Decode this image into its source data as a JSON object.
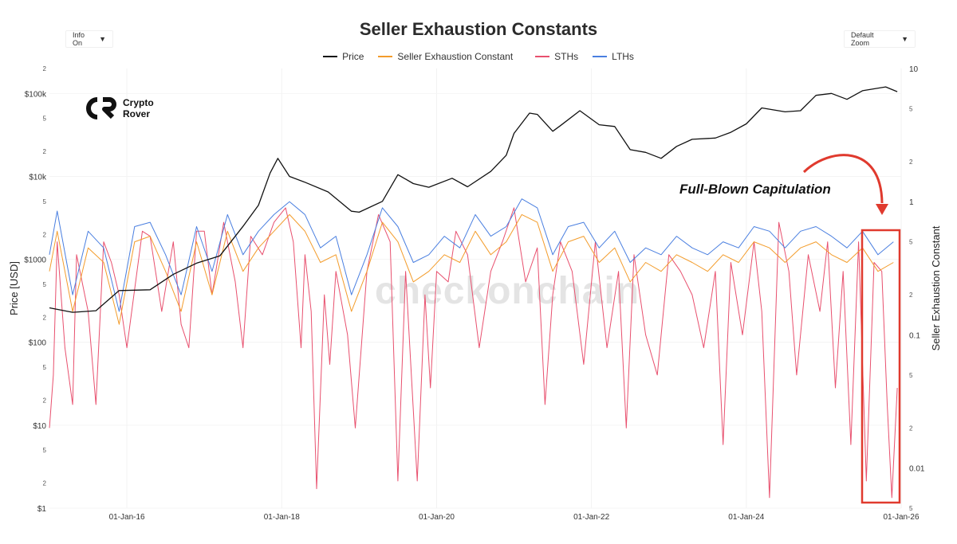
{
  "controls": {
    "info_label": "Info On",
    "zoom_label": "Default Zoom",
    "caret": "▼"
  },
  "logo": {
    "line1": "Crypto",
    "line2": "Rover"
  },
  "watermark": "checkonchain",
  "annotation": "Full-Blown Capitulation",
  "colors": {
    "price": "#111111",
    "sec": "#f39c2b",
    "sths": "#e8506e",
    "lths": "#4a7fe0",
    "highlight": "#e03a2e"
  },
  "chart_data": {
    "type": "line",
    "title": "Seller Exhaustion Constants",
    "legend": [
      "Price",
      "Seller Exhaustion Constant",
      "STHs",
      "LTHs"
    ],
    "x_ticks": [
      "01-Jan-16",
      "01-Jan-18",
      "01-Jan-20",
      "01-Jan-22",
      "01-Jan-24",
      "01-Jan-26"
    ],
    "x_range": [
      2015.0,
      2026.0
    ],
    "y_left": {
      "label": "Price [USD]",
      "scale": "log",
      "range": [
        1,
        200000
      ],
      "major_ticks": [
        {
          "value": 1,
          "label": "$1"
        },
        {
          "value": 10,
          "label": "$10"
        },
        {
          "value": 100,
          "label": "$100"
        },
        {
          "value": 1000,
          "label": "$1000"
        },
        {
          "value": 10000,
          "label": "$10k"
        },
        {
          "value": 100000,
          "label": "$100k"
        }
      ],
      "minor_ticks": [
        {
          "value": 2,
          "label": "2"
        },
        {
          "value": 5,
          "label": "5"
        },
        {
          "value": 20,
          "label": "2"
        },
        {
          "value": 50,
          "label": "5"
        },
        {
          "value": 200,
          "label": "2"
        },
        {
          "value": 500,
          "label": "5"
        },
        {
          "value": 2000,
          "label": "2"
        },
        {
          "value": 5000,
          "label": "5"
        },
        {
          "value": 20000,
          "label": "2"
        },
        {
          "value": 50000,
          "label": "5"
        },
        {
          "value": 200000,
          "label": "2"
        }
      ]
    },
    "y_right": {
      "label": "Seller Exhaustion Constant",
      "scale": "log",
      "range": [
        0.005,
        10
      ],
      "major_ticks": [
        {
          "value": 0.01,
          "label": "0.01"
        },
        {
          "value": 0.1,
          "label": "0.1"
        },
        {
          "value": 1,
          "label": "1"
        },
        {
          "value": 10,
          "label": "10"
        }
      ],
      "minor_ticks": [
        {
          "value": 0.005,
          "label": "5"
        },
        {
          "value": 0.02,
          "label": "2"
        },
        {
          "value": 0.05,
          "label": "5"
        },
        {
          "value": 0.2,
          "label": "2"
        },
        {
          "value": 0.5,
          "label": "5"
        },
        {
          "value": 2,
          "label": "2"
        },
        {
          "value": 5,
          "label": "5"
        }
      ]
    },
    "series": [
      {
        "name": "Price",
        "axis": "left",
        "x": [
          2015.0,
          2015.3,
          2015.6,
          2015.9,
          2016.3,
          2016.6,
          2016.9,
          2017.2,
          2017.5,
          2017.7,
          2017.85,
          2017.95,
          2018.1,
          2018.3,
          2018.6,
          2018.9,
          2019.0,
          2019.3,
          2019.5,
          2019.7,
          2019.9,
          2020.2,
          2020.4,
          2020.7,
          2020.9,
          2021.0,
          2021.2,
          2021.3,
          2021.5,
          2021.6,
          2021.85,
          2022.1,
          2022.3,
          2022.5,
          2022.7,
          2022.9,
          2023.1,
          2023.3,
          2023.6,
          2023.8,
          2024.0,
          2024.2,
          2024.5,
          2024.7,
          2024.9,
          2025.1,
          2025.3,
          2025.5,
          2025.8,
          2025.95
        ],
        "values": [
          260,
          230,
          240,
          420,
          430,
          660,
          900,
          1100,
          2500,
          4500,
          11000,
          16500,
          10000,
          8500,
          6500,
          3800,
          3700,
          5000,
          10500,
          8200,
          7400,
          9500,
          7500,
          11500,
          18000,
          33000,
          58000,
          56000,
          35000,
          41000,
          62000,
          42000,
          40000,
          21000,
          19500,
          16500,
          23000,
          28000,
          29000,
          34000,
          43000,
          67000,
          60000,
          62000,
          95000,
          100000,
          85000,
          108000,
          120000,
          105000
        ]
      },
      {
        "name": "Seller Exhaustion Constant",
        "axis": "right",
        "x": [
          2015.0,
          2015.1,
          2015.3,
          2015.5,
          2015.7,
          2015.9,
          2016.1,
          2016.3,
          2016.5,
          2016.7,
          2016.9,
          2017.1,
          2017.3,
          2017.5,
          2017.7,
          2017.9,
          2018.1,
          2018.3,
          2018.5,
          2018.7,
          2018.9,
          2019.1,
          2019.3,
          2019.5,
          2019.7,
          2019.9,
          2020.1,
          2020.3,
          2020.5,
          2020.7,
          2020.9,
          2021.1,
          2021.3,
          2021.5,
          2021.7,
          2021.9,
          2022.1,
          2022.3,
          2022.5,
          2022.7,
          2022.9,
          2023.1,
          2023.3,
          2023.5,
          2023.7,
          2023.9,
          2024.1,
          2024.3,
          2024.5,
          2024.7,
          2024.9,
          2025.1,
          2025.3,
          2025.5,
          2025.7,
          2025.9
        ],
        "values": [
          0.3,
          0.6,
          0.15,
          0.45,
          0.35,
          0.12,
          0.5,
          0.55,
          0.3,
          0.15,
          0.5,
          0.2,
          0.6,
          0.3,
          0.45,
          0.6,
          0.8,
          0.6,
          0.35,
          0.4,
          0.15,
          0.3,
          0.7,
          0.5,
          0.25,
          0.3,
          0.4,
          0.35,
          0.6,
          0.4,
          0.5,
          0.8,
          0.7,
          0.3,
          0.5,
          0.55,
          0.35,
          0.45,
          0.25,
          0.35,
          0.3,
          0.4,
          0.35,
          0.3,
          0.4,
          0.35,
          0.5,
          0.45,
          0.35,
          0.45,
          0.5,
          0.4,
          0.35,
          0.45,
          0.3,
          0.35
        ]
      },
      {
        "name": "STHs",
        "axis": "right",
        "x": [
          2015.0,
          2015.05,
          2015.1,
          2015.2,
          2015.3,
          2015.35,
          2015.5,
          2015.6,
          2015.7,
          2015.8,
          2015.9,
          2016.0,
          2016.2,
          2016.3,
          2016.45,
          2016.6,
          2016.7,
          2016.8,
          2016.9,
          2017.0,
          2017.1,
          2017.25,
          2017.4,
          2017.5,
          2017.6,
          2017.75,
          2017.9,
          2018.05,
          2018.15,
          2018.25,
          2018.3,
          2018.38,
          2018.45,
          2018.55,
          2018.62,
          2018.7,
          2018.85,
          2018.95,
          2019.1,
          2019.25,
          2019.4,
          2019.5,
          2019.6,
          2019.75,
          2019.85,
          2019.92,
          2020.0,
          2020.15,
          2020.25,
          2020.4,
          2020.55,
          2020.7,
          2020.85,
          2021.0,
          2021.15,
          2021.3,
          2021.4,
          2021.5,
          2021.6,
          2021.75,
          2021.9,
          2022.05,
          2022.2,
          2022.35,
          2022.45,
          2022.55,
          2022.7,
          2022.85,
          2023.0,
          2023.15,
          2023.3,
          2023.45,
          2023.6,
          2023.7,
          2023.8,
          2023.95,
          2024.1,
          2024.2,
          2024.3,
          2024.42,
          2024.55,
          2024.65,
          2024.8,
          2024.95,
          2025.05,
          2025.15,
          2025.25,
          2025.35,
          2025.45,
          2025.55,
          2025.65,
          2025.75,
          2025.82,
          2025.88,
          2025.95
        ],
        "values": [
          0.02,
          0.05,
          0.5,
          0.08,
          0.03,
          0.4,
          0.15,
          0.03,
          0.5,
          0.35,
          0.2,
          0.08,
          0.6,
          0.55,
          0.15,
          0.5,
          0.12,
          0.08,
          0.6,
          0.6,
          0.2,
          0.7,
          0.25,
          0.08,
          0.55,
          0.4,
          0.7,
          0.9,
          0.5,
          0.08,
          0.4,
          0.15,
          0.007,
          0.2,
          0.06,
          0.3,
          0.1,
          0.02,
          0.3,
          0.8,
          0.5,
          0.008,
          0.3,
          0.008,
          0.2,
          0.04,
          0.3,
          0.25,
          0.6,
          0.4,
          0.08,
          0.3,
          0.5,
          0.9,
          0.25,
          0.45,
          0.03,
          0.2,
          0.5,
          0.3,
          0.06,
          0.5,
          0.08,
          0.3,
          0.02,
          0.4,
          0.1,
          0.05,
          0.4,
          0.3,
          0.2,
          0.08,
          0.3,
          0.015,
          0.35,
          0.1,
          0.5,
          0.15,
          0.006,
          0.7,
          0.3,
          0.05,
          0.4,
          0.15,
          0.5,
          0.04,
          0.3,
          0.015,
          0.5,
          0.008,
          0.35,
          0.3,
          0.03,
          0.006,
          0.04
        ]
      },
      {
        "name": "LTHs",
        "axis": "right",
        "x": [
          2015.0,
          2015.1,
          2015.3,
          2015.5,
          2015.7,
          2015.9,
          2016.1,
          2016.3,
          2016.5,
          2016.7,
          2016.9,
          2017.1,
          2017.3,
          2017.5,
          2017.7,
          2017.9,
          2018.1,
          2018.3,
          2018.5,
          2018.7,
          2018.9,
          2019.1,
          2019.3,
          2019.5,
          2019.7,
          2019.9,
          2020.1,
          2020.3,
          2020.5,
          2020.7,
          2020.9,
          2021.1,
          2021.3,
          2021.5,
          2021.7,
          2021.9,
          2022.1,
          2022.3,
          2022.5,
          2022.7,
          2022.9,
          2023.1,
          2023.3,
          2023.5,
          2023.7,
          2023.9,
          2024.1,
          2024.3,
          2024.5,
          2024.7,
          2024.9,
          2025.1,
          2025.3,
          2025.5,
          2025.7,
          2025.9
        ],
        "values": [
          0.4,
          0.85,
          0.2,
          0.6,
          0.45,
          0.15,
          0.65,
          0.7,
          0.4,
          0.2,
          0.65,
          0.3,
          0.8,
          0.4,
          0.6,
          0.8,
          1.0,
          0.8,
          0.45,
          0.55,
          0.2,
          0.4,
          0.9,
          0.65,
          0.35,
          0.4,
          0.55,
          0.45,
          0.8,
          0.55,
          0.65,
          1.05,
          0.9,
          0.4,
          0.65,
          0.7,
          0.45,
          0.6,
          0.35,
          0.45,
          0.4,
          0.55,
          0.45,
          0.4,
          0.5,
          0.45,
          0.65,
          0.6,
          0.45,
          0.6,
          0.65,
          0.55,
          0.45,
          0.6,
          0.4,
          0.5
        ]
      }
    ]
  }
}
